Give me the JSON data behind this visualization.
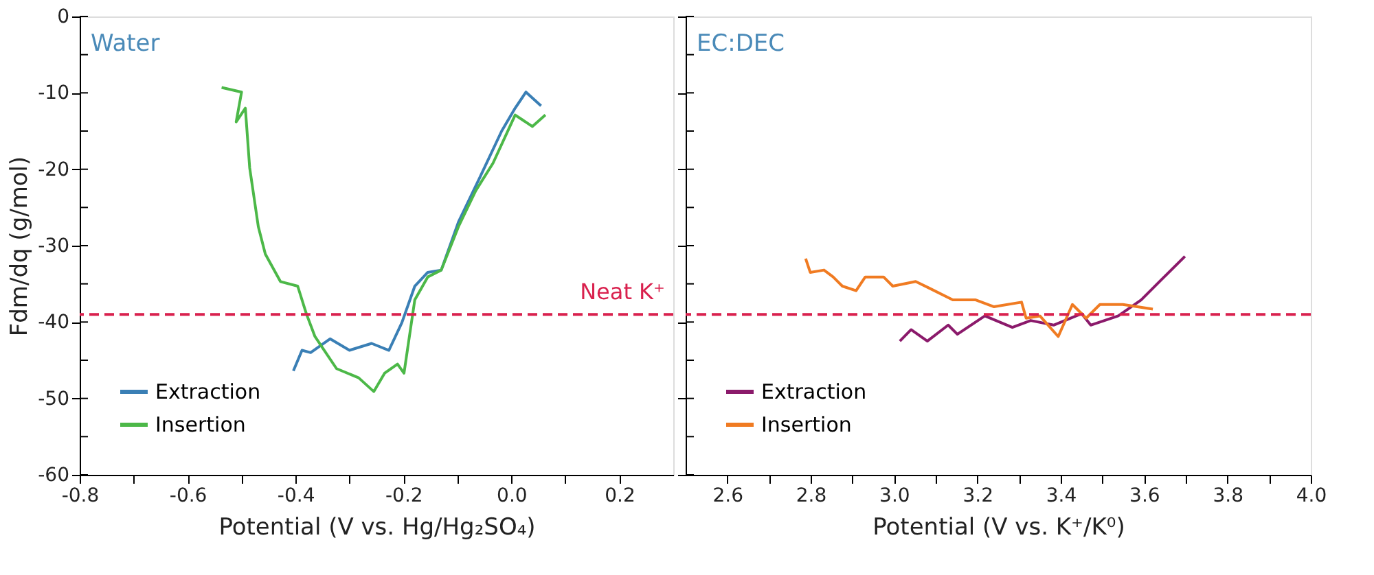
{
  "chart_data": [
    {
      "type": "line",
      "title": "Water",
      "xlabel": "Potential (V vs. Hg/Hg₂SO₄)",
      "ylabel": "Fdm/dq (g/mol)",
      "xlim": [
        -0.8,
        0.3
      ],
      "ylim": [
        -60,
        0
      ],
      "xticks": [
        -0.8,
        {
          "value": -0.7,
          "label": null
        },
        -0.6,
        {
          "value": -0.5,
          "label": null
        },
        -0.4,
        {
          "value": -0.3,
          "label": null
        },
        -0.2,
        {
          "value": -0.1,
          "label": null
        },
        {
          "value": 0,
          "label": "0.0"
        },
        {
          "value": 0.1,
          "label": null
        },
        0.2
      ],
      "yticks": [
        -60,
        {
          "value": -55,
          "label": null
        },
        -50,
        {
          "value": -45,
          "label": null
        },
        -40,
        {
          "value": -35,
          "label": null
        },
        -30,
        {
          "value": -25,
          "label": null
        },
        -20,
        {
          "value": -15,
          "label": null
        },
        -10,
        {
          "value": -5,
          "label": null
        },
        0
      ],
      "grid": false,
      "legend": "bottom left",
      "ref_lines": [
        {
          "axis": "y",
          "value": -39,
          "label": "Neat K⁺",
          "color": "#d9214e",
          "line_style": "dashed"
        }
      ],
      "series": [
        {
          "name": "Extraction",
          "color": "#3a7fb5",
          "x": [
            -0.404,
            -0.388,
            -0.372,
            -0.336,
            -0.3,
            -0.259,
            -0.227,
            -0.203,
            -0.179,
            -0.155,
            -0.13,
            -0.098,
            -0.058,
            -0.018,
            0.007,
            0.027,
            0.055
          ],
          "values": [
            -46.4,
            -43.7,
            -44,
            -42.2,
            -43.7,
            -42.8,
            -43.7,
            -40.1,
            -35.3,
            -33.5,
            -33.2,
            -26.9,
            -21,
            -15,
            -12,
            -9.9,
            -11.7
          ]
        },
        {
          "name": "Insertion",
          "color": "#4cb848",
          "x": [
            -0.537,
            -0.5,
            -0.51,
            -0.493,
            -0.485,
            -0.469,
            -0.456,
            -0.428,
            -0.396,
            -0.38,
            -0.364,
            -0.324,
            -0.283,
            -0.255,
            -0.235,
            -0.211,
            -0.199,
            -0.179,
            -0.155,
            -0.13,
            -0.098,
            -0.066,
            -0.034,
            0.007,
            0.039,
            0.063
          ],
          "values": [
            -9.3,
            -9.9,
            -13.8,
            -12,
            -19.8,
            -27.5,
            -31.1,
            -34.7,
            -35.3,
            -38.9,
            -41.9,
            -46.1,
            -47.3,
            -49.1,
            -46.7,
            -45.5,
            -46.7,
            -37.1,
            -34.1,
            -33.2,
            -27.5,
            -22.8,
            -19.2,
            -12.9,
            -14.4,
            -12.9
          ]
        }
      ]
    },
    {
      "type": "line",
      "title": "EC:DEC",
      "xlabel": "Potential (V vs. K⁺/K⁰)",
      "xlim": [
        2.5,
        4.0
      ],
      "ylim": [
        -60,
        0
      ],
      "tick_labels": "x",
      "xticks": [
        2.6,
        {
          "value": 2.7,
          "label": null
        },
        2.8,
        {
          "value": 2.9,
          "label": null
        },
        {
          "value": 3,
          "label": "3.0"
        },
        {
          "value": 3.1,
          "label": null
        },
        3.2,
        {
          "value": 3.3,
          "label": null
        },
        3.4,
        {
          "value": 3.5,
          "label": null
        },
        3.6,
        {
          "value": 3.7,
          "label": null
        },
        3.8,
        {
          "value": 3.9,
          "label": null
        },
        {
          "value": 4,
          "label": "4.0"
        }
      ],
      "yticks": [
        -60,
        {
          "value": -55,
          "label": null
        },
        -50,
        {
          "value": -45,
          "label": null
        },
        -40,
        {
          "value": -35,
          "label": null
        },
        -30,
        {
          "value": -25,
          "label": null
        },
        -20,
        {
          "value": -15,
          "label": null
        },
        -10,
        {
          "value": -5,
          "label": null
        },
        0
      ],
      "grid": false,
      "legend": "bottom left",
      "ref_lines": [
        {
          "axis": "y",
          "value": -39,
          "color": "#d9214e",
          "line_style": "dashed"
        }
      ],
      "series": [
        {
          "name": "Extraction",
          "color": "#8b1a6b",
          "x": [
            3.014,
            3.041,
            3.08,
            3.13,
            3.152,
            3.218,
            3.284,
            3.328,
            3.383,
            3.45,
            3.472,
            3.538,
            3.593,
            3.637,
            3.698
          ],
          "values": [
            -42.5,
            -41,
            -42.5,
            -40.4,
            -41.6,
            -39.2,
            -40.7,
            -39.8,
            -40.4,
            -38.9,
            -40.4,
            -39.2,
            -37.1,
            -34.7,
            -31.4
          ]
        },
        {
          "name": "Insertion",
          "color": "#f07b22",
          "x": [
            2.788,
            2.799,
            2.832,
            2.854,
            2.876,
            2.909,
            2.931,
            2.975,
            2.997,
            3.052,
            3.086,
            3.141,
            3.196,
            3.24,
            3.306,
            3.317,
            3.35,
            3.394,
            3.428,
            3.461,
            3.494,
            3.549,
            3.621
          ],
          "values": [
            -31.7,
            -33.5,
            -33.2,
            -34.1,
            -35.3,
            -35.9,
            -34.1,
            -34.1,
            -35.3,
            -34.7,
            -35.6,
            -37.1,
            -37.1,
            -38,
            -37.4,
            -39.5,
            -39.2,
            -41.9,
            -37.7,
            -39.5,
            -37.7,
            -37.7,
            -38.3
          ]
        }
      ]
    }
  ]
}
